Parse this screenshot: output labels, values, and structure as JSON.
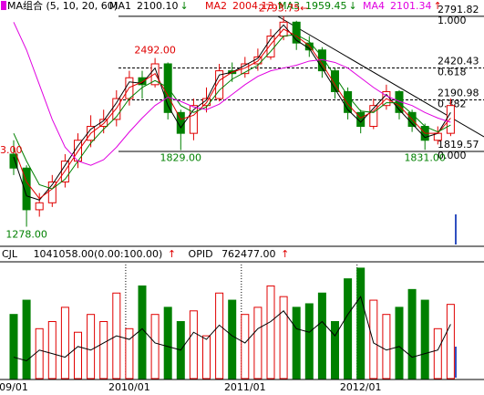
{
  "chart_data": {
    "type": "candlestick",
    "title": "MA组合 (5, 10, 20, 60)",
    "categories": [
      "09/01",
      null,
      null,
      null,
      null,
      null,
      null,
      null,
      null,
      "2010/01",
      null,
      null,
      null,
      null,
      null,
      null,
      null,
      null,
      "2011/01",
      null,
      null,
      null,
      null,
      null,
      null,
      null,
      null,
      "2012/01",
      null,
      null,
      null,
      null,
      null,
      null,
      null
    ],
    "open": [
      1800,
      1700,
      1400,
      1450,
      1600,
      1750,
      1900,
      2000,
      2050,
      2200,
      2350,
      2300,
      2450,
      2100,
      1950,
      2150,
      2200,
      2400,
      2380,
      2450,
      2500,
      2650,
      2750,
      2600,
      2550,
      2400,
      2250,
      2100,
      2000,
      2150,
      2250,
      2100,
      2000,
      1900,
      1950
    ],
    "high": [
      1900,
      1720,
      1520,
      1650,
      1800,
      1950,
      2080,
      2120,
      2260,
      2400,
      2400,
      2492,
      2460,
      2120,
      2200,
      2280,
      2450,
      2460,
      2500,
      2560,
      2700,
      2793.75,
      2760,
      2650,
      2570,
      2420,
      2280,
      2120,
      2200,
      2300,
      2260,
      2120,
      2020,
      2000,
      2200
    ],
    "low": [
      1650,
      1278,
      1350,
      1420,
      1560,
      1700,
      1850,
      1950,
      2000,
      2150,
      2200,
      2280,
      2050,
      1829,
      1900,
      2100,
      2180,
      2320,
      2350,
      2400,
      2480,
      2620,
      2550,
      2500,
      2350,
      2200,
      2050,
      1950,
      1980,
      2120,
      2050,
      1960,
      1831,
      1870,
      1930
    ],
    "close": [
      1700,
      1400,
      1450,
      1600,
      1750,
      1900,
      2000,
      2050,
      2200,
      2350,
      2300,
      2450,
      2100,
      1950,
      2150,
      2200,
      2400,
      2380,
      2450,
      2500,
      2650,
      2750,
      2600,
      2550,
      2400,
      2250,
      2100,
      2000,
      2150,
      2250,
      2100,
      2000,
      1900,
      1950,
      2150
    ],
    "up_color": "#e00000",
    "down_color": "#008000",
    "ylim": [
      1150,
      2857
    ],
    "series": [
      {
        "name": "MA1",
        "color": "#000000",
        "value_label": "2100.10",
        "trend": "↓",
        "values": [
          1780,
          1500,
          1470,
          1580,
          1720,
          1860,
          1980,
          2040,
          2170,
          2320,
          2310,
          2420,
          2150,
          1990,
          2120,
          2190,
          2370,
          2390,
          2440,
          2490,
          2630,
          2730,
          2620,
          2560,
          2420,
          2270,
          2120,
          2030,
          2130,
          2230,
          2120,
          2020,
          1920,
          1950,
          2100
        ]
      },
      {
        "name": "MA2",
        "color": "#e00000",
        "value_label": "2004.13",
        "trend": "↑",
        "values": [
          1850,
          1600,
          1480,
          1550,
          1680,
          1820,
          1950,
          2020,
          2130,
          2280,
          2320,
          2380,
          2220,
          2050,
          2080,
          2170,
          2330,
          2390,
          2420,
          2470,
          2590,
          2700,
          2650,
          2580,
          2450,
          2300,
          2160,
          2060,
          2110,
          2200,
          2150,
          2050,
          1950,
          1950,
          2060
        ]
      },
      {
        "name": "MA3",
        "color": "#008000",
        "value_label": "1959.45",
        "trend": "↓",
        "values": [
          1950,
          1750,
          1580,
          1550,
          1620,
          1750,
          1880,
          1980,
          2070,
          2200,
          2280,
          2330,
          2280,
          2150,
          2100,
          2140,
          2260,
          2340,
          2390,
          2440,
          2540,
          2650,
          2660,
          2610,
          2500,
          2360,
          2220,
          2110,
          2100,
          2170,
          2170,
          2090,
          2000,
          1960,
          2010
        ]
      },
      {
        "name": "MA4",
        "color": "#e000e0",
        "value_label": "2101.34",
        "trend": "↑",
        "values": [
          2750,
          2550,
          2300,
          2050,
          1850,
          1750,
          1720,
          1760,
          1850,
          1960,
          2060,
          2150,
          2210,
          2180,
          2140,
          2120,
          2160,
          2230,
          2300,
          2360,
          2400,
          2420,
          2440,
          2470,
          2480,
          2460,
          2420,
          2350,
          2280,
          2220,
          2180,
          2150,
          2100,
          2060,
          2030
        ]
      }
    ],
    "annotations": [
      {
        "value": 2793.75,
        "label": "2793.75←"
      },
      {
        "value": 2492,
        "label": "2492.00"
      },
      {
        "value": 1829,
        "label": "1829.00"
      },
      {
        "value": 1278,
        "label": "1278.00"
      },
      {
        "value": 1831,
        "label": "1831.00"
      }
    ],
    "edge_label": "3.00",
    "fib_levels": [
      {
        "price": 2791.82,
        "ratio": {
          "value": 1,
          "label": "1.000"
        }
      },
      {
        "price": 2420.43,
        "ratio": {
          "value": 0.618,
          "label": "0.618"
        }
      },
      {
        "price": 2190.98,
        "ratio": {
          "value": 0.382,
          "label": "0.382"
        }
      },
      {
        "price": 1819.57,
        "ratio": {
          "value": 0,
          "label": "0.000"
        }
      }
    ],
    "volume": {
      "name": "CJL",
      "value_label": "1041058.00(0.00:100.00)",
      "trend": "↑",
      "ylim": [
        0,
        1600000
      ],
      "values": [
        900000,
        1100000,
        700000,
        800000,
        1000000,
        650000,
        900000,
        800000,
        1200000,
        700000,
        1300000,
        900000,
        1000000,
        800000,
        950000,
        600000,
        1200000,
        1100000,
        900000,
        1000000,
        1300000,
        1150000,
        1000000,
        1050000,
        1200000,
        800000,
        1400000,
        1550000,
        1100000,
        900000,
        1000000,
        1250000,
        1100000,
        700000,
        1041058
      ]
    },
    "opid": {
      "name": "OPID",
      "value_label": "762477.00",
      "trend": "↑",
      "color": "#000000",
      "values": [
        300000,
        250000,
        400000,
        350000,
        300000,
        450000,
        400000,
        500000,
        600000,
        550000,
        700000,
        500000,
        450000,
        400000,
        650000,
        550000,
        750000,
        600000,
        500000,
        700000,
        800000,
        950000,
        700000,
        650000,
        800000,
        600000,
        900000,
        1150000,
        500000,
        400000,
        450000,
        300000,
        350000,
        400000,
        762477
      ]
    }
  }
}
